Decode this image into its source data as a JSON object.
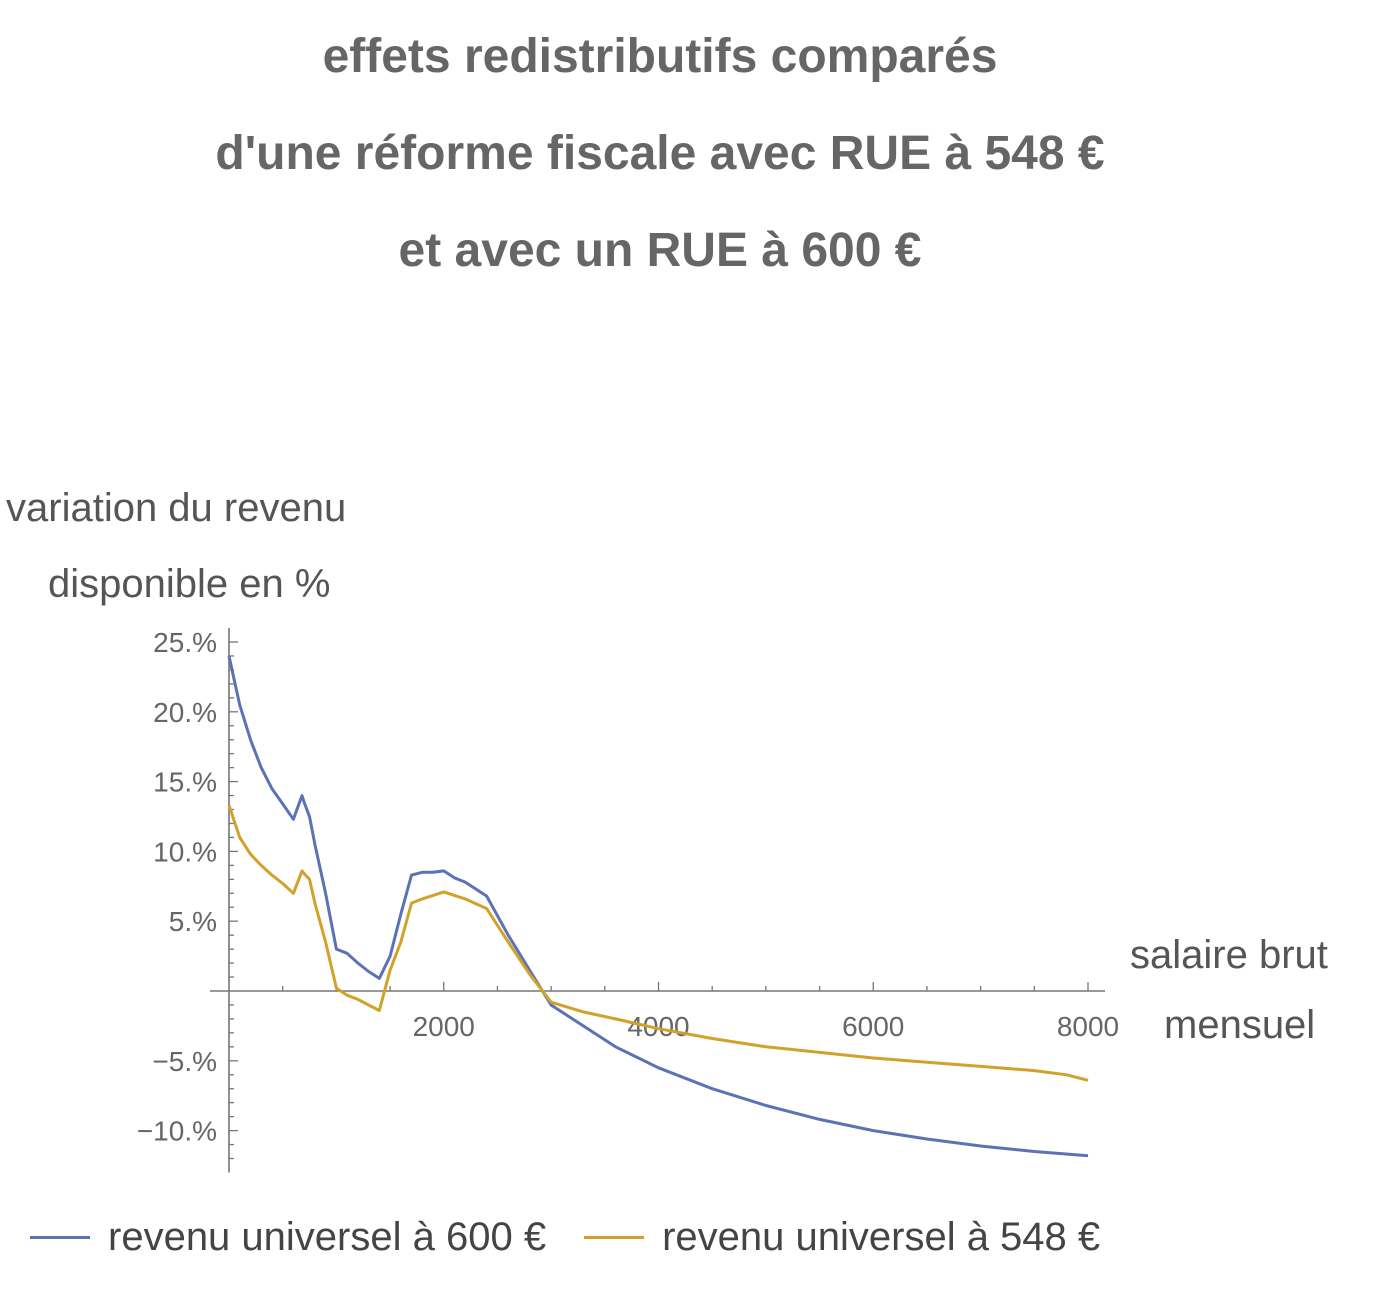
{
  "title_lines": [
    "effets redistributifs comparés",
    "d'une réforme fiscale avec RUE à 548 €",
    "et avec un RUE à 600 €"
  ],
  "chart_data": {
    "type": "line",
    "ylabel_lines": [
      "variation du revenu",
      "disponible en %"
    ],
    "xlabel_lines": [
      "salaire brut",
      "mensuel"
    ],
    "xlim": [
      0,
      8000
    ],
    "ylim": [
      -13,
      26
    ],
    "x_ticks": [
      2000,
      4000,
      6000,
      8000
    ],
    "x_tick_labels": [
      "2000",
      "4000",
      "6000",
      "8000"
    ],
    "x_minor_step": 500,
    "y_ticks": [
      -10,
      -5,
      5,
      10,
      15,
      20,
      25
    ],
    "y_tick_labels": [
      "−10.%",
      "−5.%",
      "5.%",
      "10.%",
      "15.%",
      "20.%",
      "25.%"
    ],
    "grid": false,
    "legend_position": "bottom",
    "series": [
      {
        "name": "revenu universel à 600 €",
        "color": "#5b72b5",
        "x": [
          0,
          100,
          200,
          300,
          400,
          500,
          600,
          680,
          700,
          750,
          800,
          900,
          1000,
          1100,
          1200,
          1300,
          1400,
          1500,
          1600,
          1700,
          1800,
          1900,
          2000,
          2100,
          2200,
          2400,
          2600,
          2800,
          3000,
          3300,
          3600,
          4000,
          4500,
          5000,
          5500,
          6000,
          6500,
          7000,
          7500,
          8000
        ],
        "values": [
          24,
          20.5,
          18,
          16,
          14.5,
          13.4,
          12.3,
          14,
          13.5,
          12.5,
          10.5,
          7,
          3,
          2.7,
          2,
          1.4,
          0.9,
          2.5,
          5.5,
          8.3,
          8.5,
          8.5,
          8.6,
          8.1,
          7.8,
          6.8,
          4,
          1.5,
          -1,
          -2.5,
          -4,
          -5.5,
          -7,
          -8.2,
          -9.2,
          -10,
          -10.6,
          -11.1,
          -11.5,
          -11.8
        ]
      },
      {
        "name": "revenu universel à 548 €",
        "color": "#d1a12a",
        "x": [
          0,
          100,
          200,
          300,
          400,
          500,
          600,
          680,
          700,
          750,
          800,
          900,
          1000,
          1100,
          1200,
          1300,
          1400,
          1500,
          1600,
          1700,
          1800,
          2000,
          2200,
          2400,
          2600,
          2800,
          3000,
          3300,
          3600,
          4000,
          4500,
          5000,
          5500,
          6000,
          6500,
          7000,
          7500,
          7800,
          8000
        ],
        "values": [
          13.3,
          11,
          9.8,
          9,
          8.3,
          7.7,
          7,
          8.6,
          8.4,
          8,
          6.3,
          3.5,
          0.2,
          -0.3,
          -0.6,
          -1,
          -1.4,
          1.5,
          3.5,
          6.3,
          6.6,
          7.1,
          6.6,
          5.9,
          3.5,
          1.2,
          -0.8,
          -1.5,
          -2,
          -2.7,
          -3.4,
          -4,
          -4.4,
          -4.8,
          -5.1,
          -5.4,
          -5.7,
          -6,
          -6.4
        ]
      }
    ]
  }
}
